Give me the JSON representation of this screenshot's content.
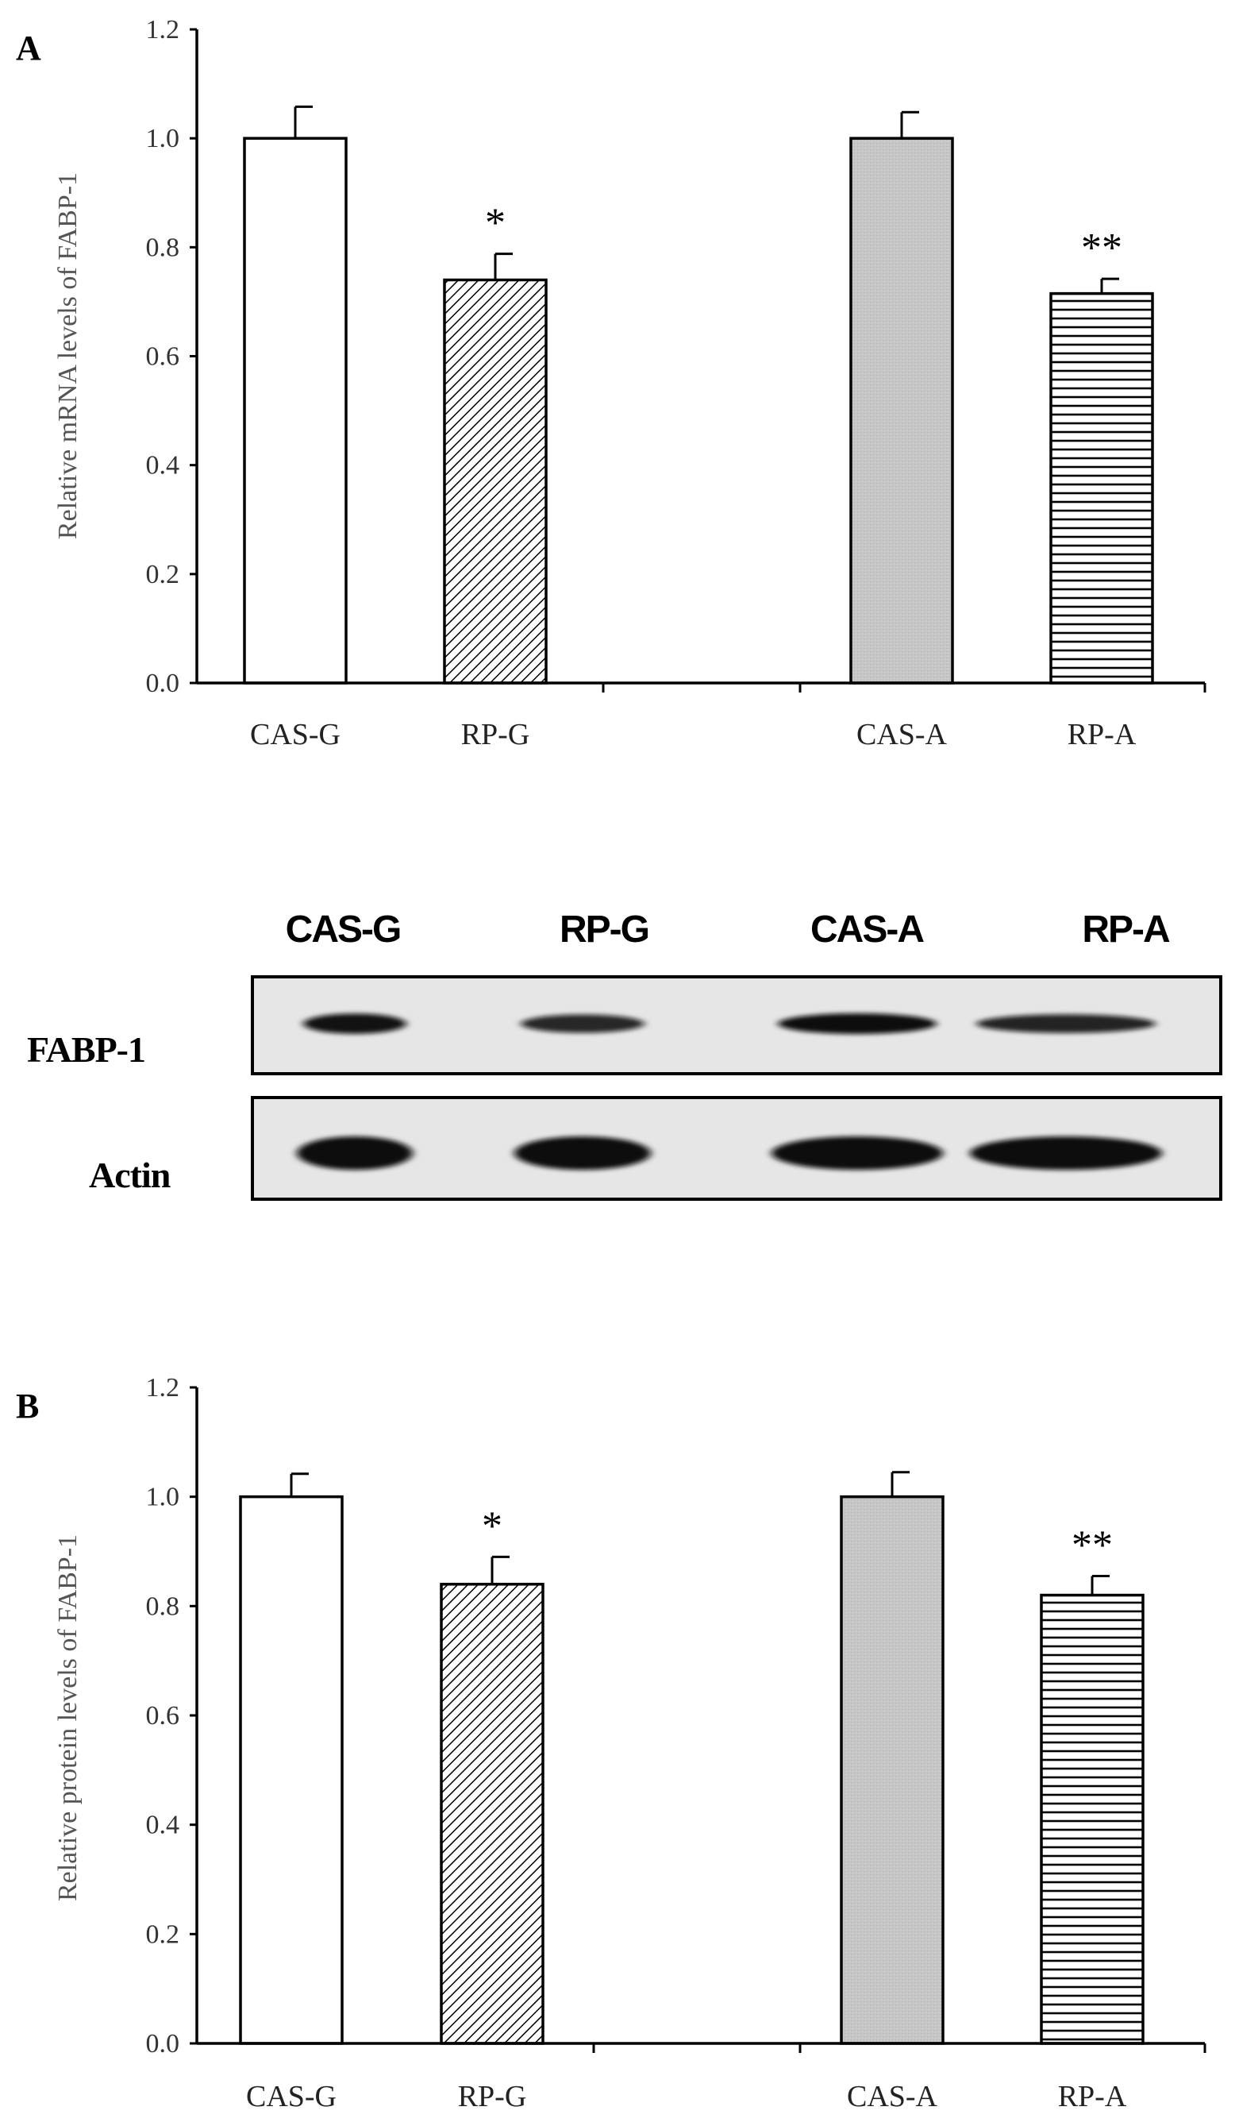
{
  "chart_data": [
    {
      "type": "bar",
      "panel_label": "A",
      "title": "",
      "xlabel": "",
      "ylabel": "Relative mRNA levels of FABP-1",
      "ylim": [
        0,
        1.2
      ],
      "yticks": [
        "0.0",
        "0.2",
        "0.4",
        "0.6",
        "0.8",
        "1.0",
        "1.2"
      ],
      "categories": [
        "CAS-G",
        "RP-G",
        "CAS-A",
        "RP-A"
      ],
      "values": [
        1.0,
        0.74,
        1.0,
        0.715
      ],
      "errors": [
        0.058,
        0.048,
        0.048,
        0.027
      ],
      "significance": [
        "",
        "*",
        "",
        "**"
      ],
      "fills": [
        "white",
        "diagonal",
        "gray",
        "horizontal"
      ],
      "grid": false,
      "legend": "none"
    },
    {
      "type": "bar",
      "panel_label": "B",
      "title": "",
      "xlabel": "",
      "ylabel": "Relative protein levels of FABP-1",
      "ylim": [
        0,
        1.2
      ],
      "yticks": [
        "0.0",
        "0.2",
        "0.4",
        "0.6",
        "0.8",
        "1.0",
        "1.2"
      ],
      "categories": [
        "CAS-G",
        "RP-G",
        "CAS-A",
        "RP-A"
      ],
      "values": [
        1.0,
        0.84,
        1.0,
        0.82
      ],
      "errors": [
        0.042,
        0.05,
        0.045,
        0.035
      ],
      "significance": [
        "",
        "*",
        "",
        "**"
      ],
      "fills": [
        "white",
        "diagonal",
        "gray",
        "horizontal"
      ],
      "grid": false,
      "legend": "none"
    }
  ],
  "blot": {
    "lanes": [
      "CAS-G",
      "RP-G",
      "CAS-A",
      "RP-A"
    ],
    "rows": [
      "FABP-1",
      "Actin"
    ],
    "intensity": {
      "FABP-1": [
        0.95,
        0.75,
        1.0,
        0.78
      ],
      "Actin": [
        1.0,
        1.0,
        1.0,
        1.0
      ]
    }
  },
  "colors": {
    "bar_stroke": "#000000",
    "gray_fill": "#c6c6c6",
    "axis": "#000000",
    "blot_bg": "#e6e6e6",
    "band": "#0c0c0c"
  }
}
